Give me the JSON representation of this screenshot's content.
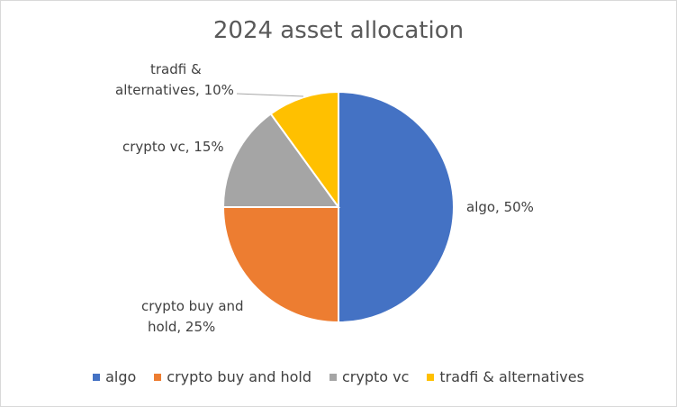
{
  "chart_data": {
    "type": "pie",
    "title": "2024 asset allocation",
    "categories": [
      "algo",
      "crypto buy and hold",
      "crypto vc",
      "tradfi & alternatives"
    ],
    "values": [
      50,
      25,
      15,
      10
    ],
    "colors": [
      "#4472C4",
      "#ED7D31",
      "#A5A5A5",
      "#FFC000"
    ],
    "data_labels": {
      "algo": "algo, 50%",
      "crypto_buy_and_hold_line1": "crypto buy and",
      "crypto_buy_and_hold_line2": "hold, 25%",
      "crypto_vc": "crypto vc, 15%",
      "tradfi_line1": "tradfi &",
      "tradfi_line2": "alternatives, 10%"
    },
    "legend": {
      "position": "bottom",
      "items": [
        "algo",
        "crypto buy and hold",
        "crypto vc",
        "tradfi & alternatives"
      ]
    }
  }
}
